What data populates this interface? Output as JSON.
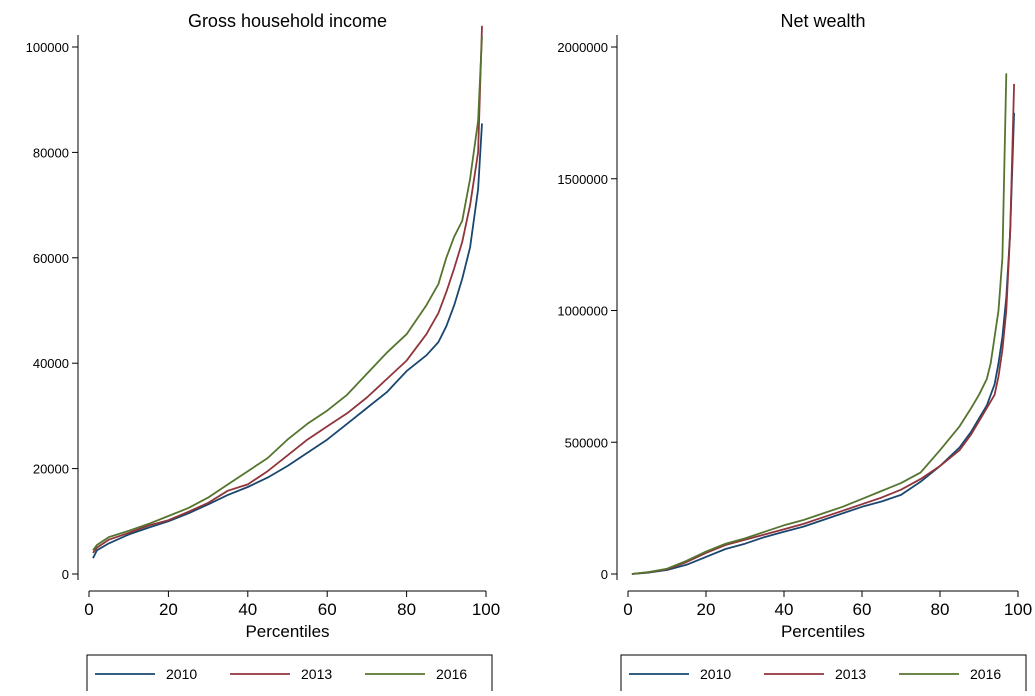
{
  "chart_data": [
    {
      "type": "line",
      "title": "Gross household income",
      "xlabel": "Percentiles",
      "ylabel": "",
      "xlim": [
        0,
        100
      ],
      "ylim": [
        0,
        105000
      ],
      "xticks": [
        0,
        20,
        40,
        60,
        80,
        100
      ],
      "yticks": [
        0,
        20000,
        40000,
        60000,
        80000,
        100000
      ],
      "legend_position": "bottom",
      "series": [
        {
          "name": "2010",
          "color": "#1a476f",
          "x": [
            1,
            2,
            5,
            10,
            15,
            20,
            25,
            30,
            35,
            40,
            45,
            50,
            55,
            60,
            65,
            70,
            75,
            80,
            85,
            88,
            90,
            92,
            94,
            96,
            98,
            99
          ],
          "y": [
            3000,
            4500,
            5800,
            7500,
            8800,
            10000,
            11500,
            13200,
            15000,
            16500,
            18300,
            20500,
            23000,
            25500,
            28500,
            31500,
            34500,
            38500,
            41500,
            44000,
            47000,
            51000,
            56000,
            62000,
            73000,
            85500
          ]
        },
        {
          "name": "2013",
          "color": "#90353b",
          "x": [
            1,
            2,
            5,
            10,
            15,
            20,
            25,
            30,
            35,
            40,
            45,
            50,
            55,
            60,
            65,
            70,
            75,
            80,
            85,
            88,
            90,
            92,
            94,
            96,
            98,
            99
          ],
          "y": [
            4000,
            5000,
            6500,
            7800,
            9200,
            10200,
            11800,
            13500,
            15800,
            17000,
            19500,
            22500,
            25500,
            28000,
            30500,
            33500,
            37000,
            40500,
            45500,
            49500,
            53500,
            58000,
            63000,
            70000,
            80000,
            104000
          ]
        },
        {
          "name": "2016",
          "color": "#55752f",
          "x": [
            1,
            2,
            5,
            10,
            15,
            20,
            25,
            30,
            35,
            40,
            45,
            50,
            55,
            60,
            65,
            70,
            75,
            80,
            85,
            88,
            90,
            92,
            94,
            96,
            98,
            99
          ],
          "y": [
            4500,
            5500,
            7000,
            8200,
            9500,
            11000,
            12500,
            14500,
            17000,
            19500,
            22000,
            25500,
            28500,
            31000,
            34000,
            38000,
            42000,
            45500,
            51000,
            55000,
            60000,
            64000,
            67000,
            75000,
            86000,
            102000
          ]
        }
      ]
    },
    {
      "type": "line",
      "title": "Net wealth",
      "xlabel": "Percentiles",
      "ylabel": "",
      "xlim": [
        0,
        100
      ],
      "ylim": [
        0,
        2000000
      ],
      "xticks": [
        0,
        20,
        40,
        60,
        80,
        100
      ],
      "yticks": [
        0,
        500000,
        1000000,
        1500000,
        2000000
      ],
      "legend_position": "bottom",
      "series": [
        {
          "name": "2010",
          "color": "#1a476f",
          "x": [
            1,
            5,
            10,
            15,
            20,
            25,
            30,
            35,
            40,
            45,
            50,
            55,
            60,
            65,
            70,
            75,
            80,
            85,
            88,
            90,
            92,
            94,
            95,
            96,
            97,
            98,
            99
          ],
          "y": [
            0,
            5000,
            15000,
            35000,
            65000,
            95000,
            115000,
            140000,
            160000,
            180000,
            205000,
            230000,
            255000,
            275000,
            300000,
            350000,
            410000,
            480000,
            540000,
            590000,
            640000,
            720000,
            800000,
            900000,
            1050000,
            1300000,
            1750000
          ]
        },
        {
          "name": "2013",
          "color": "#90353b",
          "x": [
            1,
            5,
            10,
            15,
            20,
            25,
            30,
            35,
            40,
            45,
            50,
            55,
            60,
            65,
            70,
            75,
            80,
            85,
            88,
            90,
            92,
            94,
            95,
            96,
            97,
            98,
            99
          ],
          "y": [
            0,
            6000,
            18000,
            45000,
            80000,
            110000,
            130000,
            150000,
            170000,
            190000,
            215000,
            240000,
            265000,
            290000,
            320000,
            360000,
            410000,
            470000,
            530000,
            580000,
            630000,
            680000,
            750000,
            850000,
            1000000,
            1300000,
            1860000
          ]
        },
        {
          "name": "2016",
          "color": "#55752f",
          "x": [
            1,
            5,
            10,
            15,
            20,
            25,
            30,
            35,
            40,
            45,
            50,
            55,
            60,
            65,
            70,
            75,
            80,
            85,
            88,
            90,
            92,
            93,
            94,
            95,
            96,
            97
          ],
          "y": [
            0,
            7000,
            20000,
            50000,
            85000,
            115000,
            135000,
            160000,
            185000,
            205000,
            230000,
            255000,
            285000,
            315000,
            345000,
            385000,
            470000,
            560000,
            630000,
            680000,
            740000,
            800000,
            900000,
            1000000,
            1200000,
            1900000
          ]
        }
      ]
    }
  ]
}
